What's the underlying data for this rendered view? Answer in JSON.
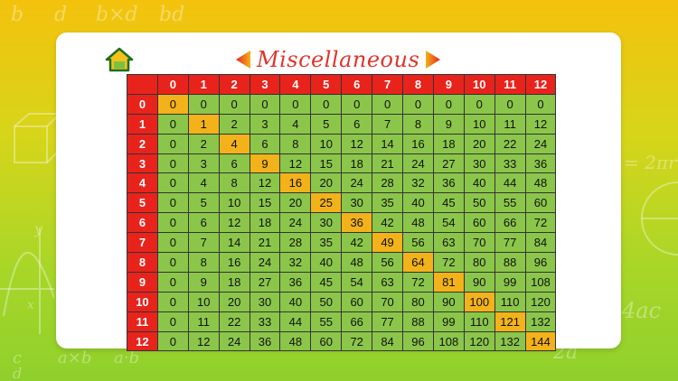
{
  "app": {
    "title": "Miscellaneous",
    "colors": {
      "header": "#e8231c",
      "cell": "#8bc64a",
      "diagonal": "#f3b21a",
      "title": "#e0352b"
    },
    "icons": {
      "home": "home-icon",
      "prev": "arrow-left-icon",
      "next": "arrow-right-icon"
    }
  },
  "background_text": [
    "b",
    "d",
    "b×d",
    "bd",
    "= 2πr",
    "4ac",
    "2a",
    "c",
    "d",
    "a×b",
    "a·b",
    "y",
    "x"
  ],
  "table": {
    "headers": [
      "0",
      "1",
      "2",
      "3",
      "4",
      "5",
      "6",
      "7",
      "8",
      "9",
      "10",
      "11",
      "12"
    ],
    "rows": [
      {
        "label": "0",
        "cells": [
          "0",
          "0",
          "0",
          "0",
          "0",
          "0",
          "0",
          "0",
          "0",
          "0",
          "0",
          "0",
          "0"
        ]
      },
      {
        "label": "1",
        "cells": [
          "0",
          "1",
          "2",
          "3",
          "4",
          "5",
          "6",
          "7",
          "8",
          "9",
          "10",
          "11",
          "12"
        ]
      },
      {
        "label": "2",
        "cells": [
          "0",
          "2",
          "4",
          "6",
          "8",
          "10",
          "12",
          "14",
          "16",
          "18",
          "20",
          "22",
          "24"
        ]
      },
      {
        "label": "3",
        "cells": [
          "0",
          "3",
          "6",
          "9",
          "12",
          "15",
          "18",
          "21",
          "24",
          "27",
          "30",
          "33",
          "36"
        ]
      },
      {
        "label": "4",
        "cells": [
          "0",
          "4",
          "8",
          "12",
          "16",
          "20",
          "24",
          "28",
          "32",
          "36",
          "40",
          "44",
          "48"
        ]
      },
      {
        "label": "5",
        "cells": [
          "0",
          "5",
          "10",
          "15",
          "20",
          "25",
          "30",
          "35",
          "40",
          "45",
          "50",
          "55",
          "60"
        ]
      },
      {
        "label": "6",
        "cells": [
          "0",
          "6",
          "12",
          "18",
          "24",
          "30",
          "36",
          "42",
          "48",
          "54",
          "60",
          "66",
          "72"
        ]
      },
      {
        "label": "7",
        "cells": [
          "0",
          "7",
          "14",
          "21",
          "28",
          "35",
          "42",
          "49",
          "56",
          "63",
          "70",
          "77",
          "84"
        ]
      },
      {
        "label": "8",
        "cells": [
          "0",
          "8",
          "16",
          "24",
          "32",
          "40",
          "48",
          "56",
          "64",
          "72",
          "80",
          "88",
          "96"
        ]
      },
      {
        "label": "9",
        "cells": [
          "0",
          "9",
          "18",
          "27",
          "36",
          "45",
          "54",
          "63",
          "72",
          "81",
          "90",
          "99",
          "108"
        ]
      },
      {
        "label": "10",
        "cells": [
          "0",
          "10",
          "20",
          "30",
          "40",
          "50",
          "60",
          "70",
          "80",
          "90",
          "100",
          "110",
          "120"
        ]
      },
      {
        "label": "11",
        "cells": [
          "0",
          "11",
          "22",
          "33",
          "44",
          "55",
          "66",
          "77",
          "88",
          "99",
          "110",
          "121",
          "132"
        ]
      },
      {
        "label": "12",
        "cells": [
          "0",
          "12",
          "24",
          "36",
          "48",
          "60",
          "72",
          "84",
          "96",
          "108",
          "120",
          "132",
          "144"
        ]
      }
    ]
  }
}
